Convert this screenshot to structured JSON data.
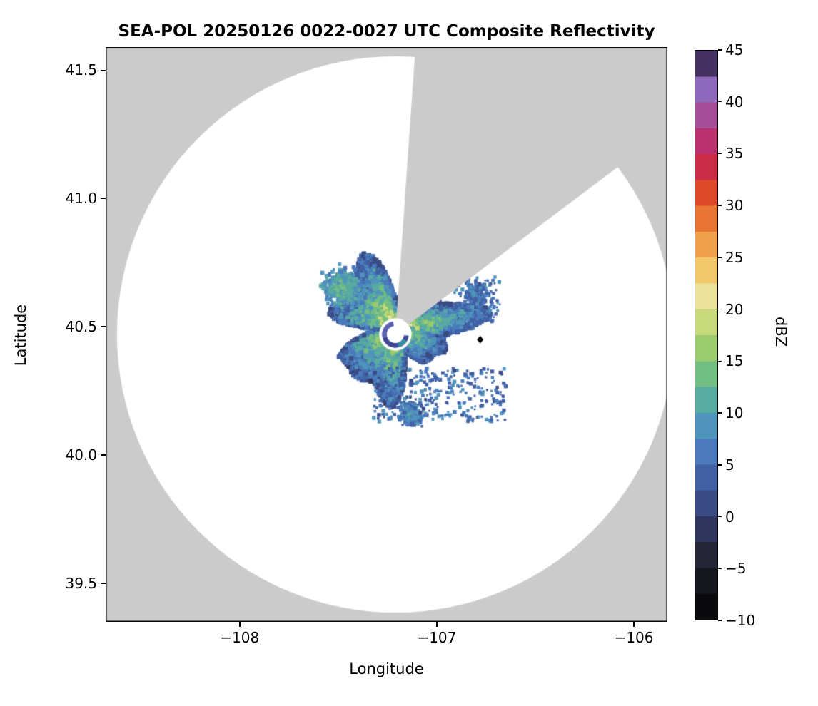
{
  "figure": {
    "title": "SEA-POL 20250126 0022-0027 UTC Composite Reflectivity"
  },
  "chart_data": {
    "type": "heatmap",
    "subtype": "radar-composite-reflectivity-ppi",
    "title": "SEA-POL 20250126 0022-0027 UTC Composite Reflectivity",
    "xlabel": "Longitude",
    "ylabel": "Latitude",
    "xlim": [
      -108.68,
      -105.83
    ],
    "ylim": [
      39.35,
      41.59
    ],
    "xticks": [
      -108,
      -107,
      -106
    ],
    "xtick_labels": [
      "−108",
      "−107",
      "−106"
    ],
    "yticks": [
      39.5,
      40.0,
      40.5,
      41.0,
      41.5
    ],
    "ytick_labels": [
      "39.5",
      "40.0",
      "40.5",
      "41.0",
      "41.5"
    ],
    "grid": false,
    "legend": "none",
    "colorbar": {
      "label": "dBZ",
      "min": -10,
      "max": 45,
      "step": 2.5,
      "ticks": [
        -10,
        -5,
        0,
        5,
        10,
        15,
        20,
        25,
        30,
        35,
        40,
        45
      ],
      "tick_labels": [
        "−10",
        "−5",
        "0",
        "5",
        "10",
        "15",
        "20",
        "25",
        "30",
        "35",
        "40",
        "45"
      ],
      "colors": [
        "#0a0a0c",
        "#17171f",
        "#242637",
        "#30365b",
        "#3a4a82",
        "#4160a4",
        "#4a7abc",
        "#4f94bb",
        "#58aba1",
        "#73be82",
        "#9ccb6e",
        "#c8da7a",
        "#ece29b",
        "#f2c768",
        "#f0a04a",
        "#e87431",
        "#dc4a28",
        "#ca2e47",
        "#ba306c",
        "#a64e97",
        "#8d68bb",
        "#43325f"
      ]
    },
    "map": {
      "outside_color": "#cbcbcb",
      "inside_color": "#ffffff",
      "radar_center": {
        "lon": -107.21,
        "lat": 40.47
      },
      "coverage_radius_lat_deg": 1.084,
      "blocked_sector": {
        "azimuth_start_deg": 4,
        "azimuth_end_deg": 53
      },
      "blind_hole": {
        "inner_radius_deg": 0.033,
        "outer_radius_deg": 0.052,
        "ring_segments": [
          {
            "az0": 95,
            "az1": 255,
            "color": "#3f4796"
          },
          {
            "az0": 255,
            "az1": 350,
            "color": "#5a61b2"
          },
          {
            "az0": 120,
            "az1": 165,
            "color": "#3a8fa8"
          }
        ]
      },
      "marker": {
        "lon": -106.78,
        "lat": 40.45,
        "shape": "diamond",
        "color": "#000000"
      },
      "echoes": {
        "main": {
          "lon": -107.21,
          "lat": 40.5,
          "rx": 0.3,
          "ry": 0.21,
          "core_dbz": 20,
          "edge_dbz": 3,
          "points": 9000
        },
        "clusters": [
          {
            "lon": -107.48,
            "lat": 40.65,
            "sx": 0.065,
            "sy": 0.045,
            "dbz": 13,
            "points": 500
          },
          {
            "lon": -107.13,
            "lat": 40.16,
            "sx": 0.04,
            "sy": 0.028,
            "dbz": 9,
            "points": 260
          },
          {
            "lon": -106.8,
            "lat": 40.62,
            "sx": 0.045,
            "sy": 0.035,
            "dbz": 7,
            "points": 130
          }
        ],
        "speckle_boxes": [
          {
            "lon0": -107.32,
            "lat0": 40.13,
            "lon1": -106.65,
            "lat1": 40.34,
            "dbz_min": 2,
            "dbz_max": 9,
            "points": 330
          },
          {
            "lon0": -106.92,
            "lat0": 40.52,
            "lon1": -106.68,
            "lat1": 40.7,
            "dbz_min": 3,
            "dbz_max": 9,
            "points": 110
          }
        ]
      }
    }
  }
}
